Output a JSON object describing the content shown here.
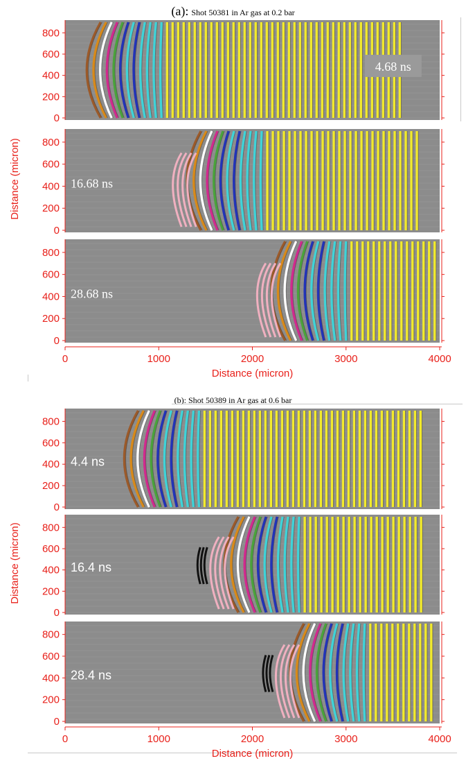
{
  "figure_a": {
    "label": "(a):",
    "caption": "Shot 50381 in Ar gas at 0.2 bar",
    "panels": [
      {
        "time": "4.68 ns",
        "front_um": 380,
        "boxed": true
      },
      {
        "time": "16.68 ns",
        "front_um": 1450,
        "boxed": false
      },
      {
        "time": "28.68 ns",
        "front_um": 2350,
        "boxed": false
      }
    ],
    "right_edge_um": [
      3630,
      3800,
      3950
    ],
    "y_ticks": [
      "0",
      "200",
      "400",
      "600",
      "800"
    ],
    "x_ticks": [
      "0",
      "1000",
      "2000",
      "3000",
      "4000"
    ],
    "ylabel": "Distance (micron)",
    "xlabel": "Distance (micron)"
  },
  "figure_b": {
    "caption": "(b): Shot 50389 in Ar gas at 0.6 bar",
    "panels": [
      {
        "time": "4.4 ns",
        "front_um": 780,
        "boxed": false
      },
      {
        "time": "16.4 ns",
        "front_um": 1850,
        "boxed": false
      },
      {
        "time": "28.4 ns",
        "front_um": 2550,
        "boxed": false
      }
    ],
    "right_edge_um": [
      3850,
      3850,
      3950
    ],
    "y_ticks": [
      "0",
      "200",
      "400",
      "600",
      "800"
    ],
    "x_ticks": [
      "0",
      "1000",
      "2000",
      "3000",
      "4000"
    ],
    "ylabel": "Distance (micron)",
    "xlabel": "Distance (micron)"
  },
  "colors": {
    "axis": "#e8201a",
    "background": "#8c8c8c",
    "fringe_yellow": "#f2ea2c",
    "fringe_cyan": "#3fd3d8",
    "fringe_blue": "#2233b8",
    "fringe_magenta": "#d12a8e",
    "fringe_green": "#4aa33b",
    "fringe_orange": "#d88a1a",
    "fringe_white": "#ffffff",
    "fringe_brown": "#9b5a2a",
    "fringe_pink": "#f0b0c0",
    "fringe_black": "#111111"
  }
}
